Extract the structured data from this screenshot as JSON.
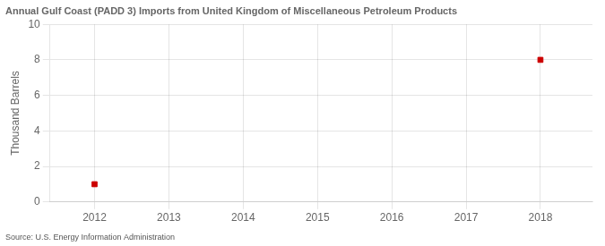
{
  "chart_data": {
    "type": "scatter",
    "title": "Annual Gulf Coast (PADD 3) Imports from United Kingdom of Miscellaneous Petroleum Products",
    "ylabel": "Thousand Barrels",
    "source": "Source: U.S. Energy Information Administration",
    "x": [
      2012,
      2018
    ],
    "values": [
      1,
      8
    ],
    "color": "#cc0000",
    "marker": "square",
    "xlim": [
      2011.4,
      2018.7
    ],
    "xticks": [
      2012,
      2013,
      2014,
      2015,
      2016,
      2017,
      2018
    ],
    "ylim": [
      0,
      10
    ],
    "yticks": [
      0,
      2,
      4,
      6,
      8,
      10
    ],
    "grid": true
  }
}
